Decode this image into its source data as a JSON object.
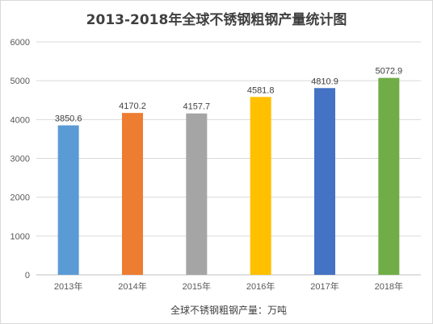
{
  "chart_data": {
    "type": "bar",
    "title": "2013-2018年全球不锈钢粗钢产量统计图",
    "categories": [
      "2013年",
      "2014年",
      "2015年",
      "2016年",
      "2017年",
      "2018年"
    ],
    "values": [
      3850.6,
      4170.2,
      4157.7,
      4581.8,
      4810.9,
      5072.9
    ],
    "value_labels": [
      "3850.6",
      "4170.2",
      "4157.7",
      "4581.8",
      "4810.9",
      "5072.9"
    ],
    "bar_colors": [
      "#5b9bd5",
      "#ed7d31",
      "#a5a5a5",
      "#ffc000",
      "#4472c4",
      "#70ad47"
    ],
    "ylim": [
      0,
      6000
    ],
    "yticks": [
      "0",
      "1000",
      "2000",
      "3000",
      "4000",
      "5000",
      "6000"
    ],
    "grid": true,
    "legend_position": "bottom",
    "footer_label": "全球不锈钢粗钢产量：万吨",
    "xlabel": "",
    "ylabel": ""
  }
}
